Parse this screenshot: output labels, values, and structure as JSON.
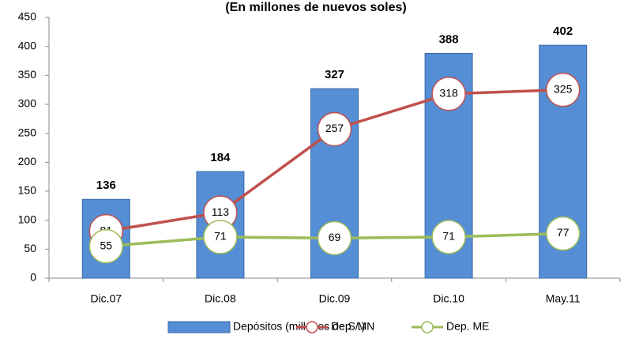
{
  "chart_data": {
    "type": "bar",
    "title": "(En millones de nuevos soles)",
    "categories": [
      "Dic.07",
      "Dic.08",
      "Dic.09",
      "Dic.10",
      "May.11"
    ],
    "series": [
      {
        "name": "Depósitos (millones de S/.)",
        "color": "#558ed5",
        "values": [
          136,
          184,
          327,
          388,
          402
        ]
      },
      {
        "name": "Dep. MN",
        "type": "line",
        "color": "#c0504d",
        "values": [
          81,
          113,
          257,
          318,
          325
        ]
      },
      {
        "name": "Dep. ME",
        "type": "line",
        "color": "#9bbb59",
        "values": [
          55,
          71,
          69,
          71,
          77
        ]
      }
    ],
    "ylim": [
      0,
      450
    ],
    "yticks": [
      0,
      50,
      100,
      150,
      200,
      250,
      300,
      350,
      400,
      450
    ],
    "grid": false,
    "legend": "bottom"
  }
}
